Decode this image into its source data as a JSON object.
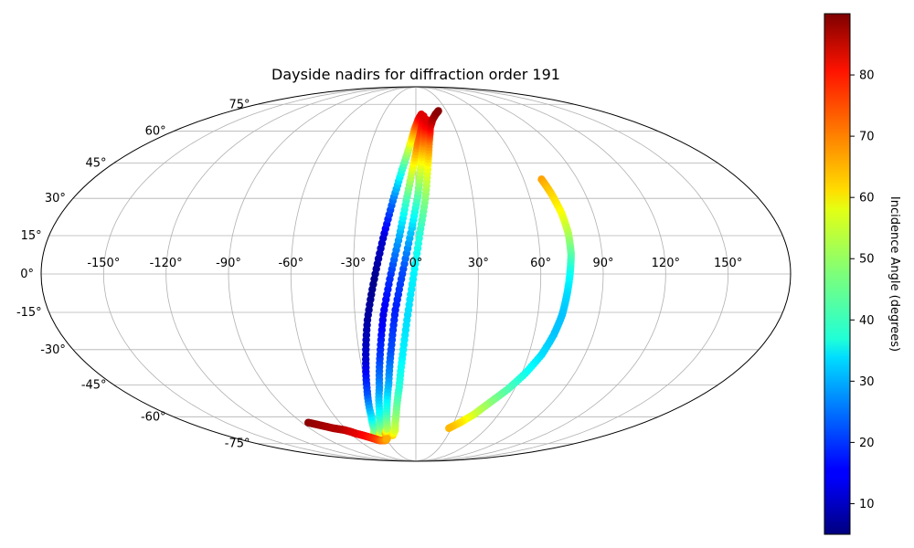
{
  "chart_data": {
    "type": "scatter",
    "projection": "mollweide",
    "title": "Dayside nadirs for diffraction order 191",
    "grid": true,
    "x_ticks": [
      "-150°",
      "-120°",
      "-90°",
      "-60°",
      "-30°",
      "0°",
      "30°",
      "60°",
      "90°",
      "120°",
      "150°"
    ],
    "x_tick_values": [
      -150,
      -120,
      -90,
      -60,
      -30,
      0,
      30,
      60,
      90,
      120,
      150
    ],
    "y_ticks": [
      "75°",
      "60°",
      "45°",
      "30°",
      "15°",
      "0°",
      "-15°",
      "-30°",
      "-45°",
      "-60°",
      "-75°"
    ],
    "y_tick_values": [
      75,
      60,
      45,
      30,
      15,
      0,
      -15,
      -30,
      -45,
      -60,
      -75
    ],
    "colormap": "jet",
    "colorbar": {
      "label": "Incidence Angle (degrees)",
      "min": 5,
      "max": 90,
      "ticks": [
        10,
        20,
        30,
        40,
        50,
        60,
        70,
        80
      ],
      "tick_labels": [
        "10",
        "20",
        "30",
        "40",
        "50",
        "60",
        "70",
        "80"
      ]
    },
    "series": [
      {
        "lon": [
          -40,
          -36,
          -33,
          -30,
          -27,
          -24,
          -20,
          -16,
          -12,
          -8,
          -4,
          -1,
          2,
          5
        ],
        "lat": [
          -70,
          -67,
          -60,
          -48,
          -34,
          -18,
          -2,
          14,
          29,
          42,
          53,
          61,
          66,
          69
        ],
        "incidence": [
          62,
          48,
          36,
          22,
          12,
          8,
          6,
          12,
          25,
          40,
          55,
          68,
          77,
          82
        ]
      },
      {
        "lon": [
          -34,
          -30,
          -26,
          -22,
          -19,
          -16,
          -12,
          -8,
          -5,
          -2,
          1,
          4,
          6,
          7
        ],
        "lat": [
          -70,
          -67,
          -58,
          -46,
          -32,
          -16,
          0,
          15,
          29,
          42,
          53,
          61,
          66,
          68
        ],
        "incidence": [
          64,
          50,
          38,
          28,
          20,
          14,
          20,
          30,
          42,
          55,
          68,
          76,
          80,
          82
        ]
      },
      {
        "lon": [
          -28,
          -24,
          -20,
          -16,
          -13,
          -10,
          -6,
          -2,
          1,
          3,
          5,
          7,
          9
        ],
        "lat": [
          -69,
          -66,
          -56,
          -44,
          -30,
          -14,
          2,
          18,
          31,
          44,
          54,
          62,
          66
        ],
        "incidence": [
          66,
          52,
          40,
          30,
          22,
          18,
          22,
          33,
          44,
          56,
          68,
          78,
          82
        ]
      },
      {
        "lon": [
          -22,
          -18,
          -14,
          -10,
          -7,
          -4,
          -1,
          2,
          5,
          7,
          9,
          11,
          14,
          18,
          22
        ],
        "lat": [
          -70,
          -67,
          -58,
          -46,
          -32,
          -16,
          0,
          16,
          30,
          44,
          55,
          62,
          66,
          69,
          71
        ],
        "incidence": [
          62,
          55,
          48,
          40,
          36,
          34,
          36,
          40,
          48,
          58,
          70,
          80,
          85,
          88,
          89
        ]
      },
      {
        "lon": [
          -85,
          -80,
          -75,
          -70,
          -66,
          -62,
          -58,
          -55,
          -50,
          -46,
          -42,
          -38,
          -35,
          -32,
          -29
        ],
        "lat": [
          -63,
          -64,
          -65,
          -66,
          -66.5,
          -67,
          -68,
          -69,
          -70,
          -71,
          -72,
          -73,
          -73,
          -73,
          -72
        ],
        "incidence": [
          89,
          88,
          87,
          86,
          86,
          85,
          83,
          82,
          80,
          78,
          76,
          73,
          70,
          68,
          65
        ]
      },
      {
        "lon": [
          70,
          72,
          74,
          75,
          75,
          74,
          73,
          72,
          70,
          67,
          62,
          56,
          49,
          42,
          35,
          28
        ],
        "lat": [
          38,
          32,
          24,
          16,
          8,
          0,
          -8,
          -16,
          -24,
          -32,
          -40,
          -47,
          -53,
          -59,
          -63,
          -66
        ],
        "incidence": [
          66,
          62,
          58,
          52,
          45,
          38,
          34,
          32,
          32,
          34,
          38,
          43,
          48,
          54,
          60,
          64
        ]
      }
    ]
  }
}
